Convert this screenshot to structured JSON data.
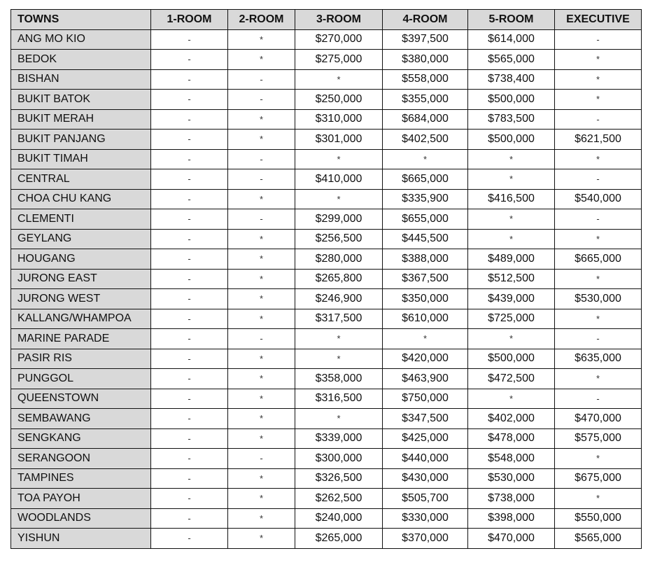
{
  "headers": [
    "TOWNS",
    "1-ROOM",
    "2-ROOM",
    "3-ROOM",
    "4-ROOM",
    "5-ROOM",
    "EXECUTIVE"
  ],
  "rows": [
    [
      "ANG MO KIO",
      "-",
      "*",
      "$270,000",
      "$397,500",
      "$614,000",
      "-"
    ],
    [
      "BEDOK",
      "-",
      "*",
      "$275,000",
      "$380,000",
      "$565,000",
      "*"
    ],
    [
      "BISHAN",
      "-",
      "-",
      "*",
      "$558,000",
      "$738,400",
      "*"
    ],
    [
      "BUKIT BATOK",
      "-",
      "-",
      "$250,000",
      "$355,000",
      "$500,000",
      "*"
    ],
    [
      "BUKIT MERAH",
      "-",
      "*",
      "$310,000",
      "$684,000",
      "$783,500",
      "-"
    ],
    [
      "BUKIT PANJANG",
      "-",
      "*",
      "$301,000",
      "$402,500",
      "$500,000",
      "$621,500"
    ],
    [
      "BUKIT TIMAH",
      "-",
      "-",
      "*",
      "*",
      "*",
      "*"
    ],
    [
      "CENTRAL",
      "-",
      "-",
      "$410,000",
      "$665,000",
      "*",
      "-"
    ],
    [
      "CHOA CHU KANG",
      "-",
      "*",
      "*",
      "$335,900",
      "$416,500",
      "$540,000"
    ],
    [
      "CLEMENTI",
      "-",
      "-",
      "$299,000",
      "$655,000",
      "*",
      "-"
    ],
    [
      "GEYLANG",
      "-",
      "*",
      "$256,500",
      "$445,500",
      "*",
      "*"
    ],
    [
      "HOUGANG",
      "-",
      "*",
      "$280,000",
      "$388,000",
      "$489,000",
      "$665,000"
    ],
    [
      "JURONG EAST",
      "-",
      "*",
      "$265,800",
      "$367,500",
      "$512,500",
      "*"
    ],
    [
      "JURONG WEST",
      "-",
      "*",
      "$246,900",
      "$350,000",
      "$439,000",
      "$530,000"
    ],
    [
      "KALLANG/WHAMPOA",
      "-",
      "*",
      "$317,500",
      "$610,000",
      "$725,000",
      "*"
    ],
    [
      "MARINE PARADE",
      "-",
      "-",
      "*",
      "*",
      "*",
      "-"
    ],
    [
      "PASIR RIS",
      "-",
      "*",
      "*",
      "$420,000",
      "$500,000",
      "$635,000"
    ],
    [
      "PUNGGOL",
      "-",
      "*",
      "$358,000",
      "$463,900",
      "$472,500",
      "*"
    ],
    [
      "QUEENSTOWN",
      "-",
      "*",
      "$316,500",
      "$750,000",
      "*",
      "-"
    ],
    [
      "SEMBAWANG",
      "-",
      "*",
      "*",
      "$347,500",
      "$402,000",
      "$470,000"
    ],
    [
      "SENGKANG",
      "-",
      "*",
      "$339,000",
      "$425,000",
      "$478,000",
      "$575,000"
    ],
    [
      "SERANGOON",
      "-",
      "-",
      "$300,000",
      "$440,000",
      "$548,000",
      "*"
    ],
    [
      "TAMPINES",
      "-",
      "*",
      "$326,500",
      "$430,000",
      "$530,000",
      "$675,000"
    ],
    [
      "TOA PAYOH",
      "-",
      "*",
      "$262,500",
      "$505,700",
      "$738,000",
      "*"
    ],
    [
      "WOODLANDS",
      "-",
      "*",
      "$240,000",
      "$330,000",
      "$398,000",
      "$550,000"
    ],
    [
      "YISHUN",
      "-",
      "*",
      "$265,000",
      "$370,000",
      "$470,000",
      "$565,000"
    ]
  ]
}
